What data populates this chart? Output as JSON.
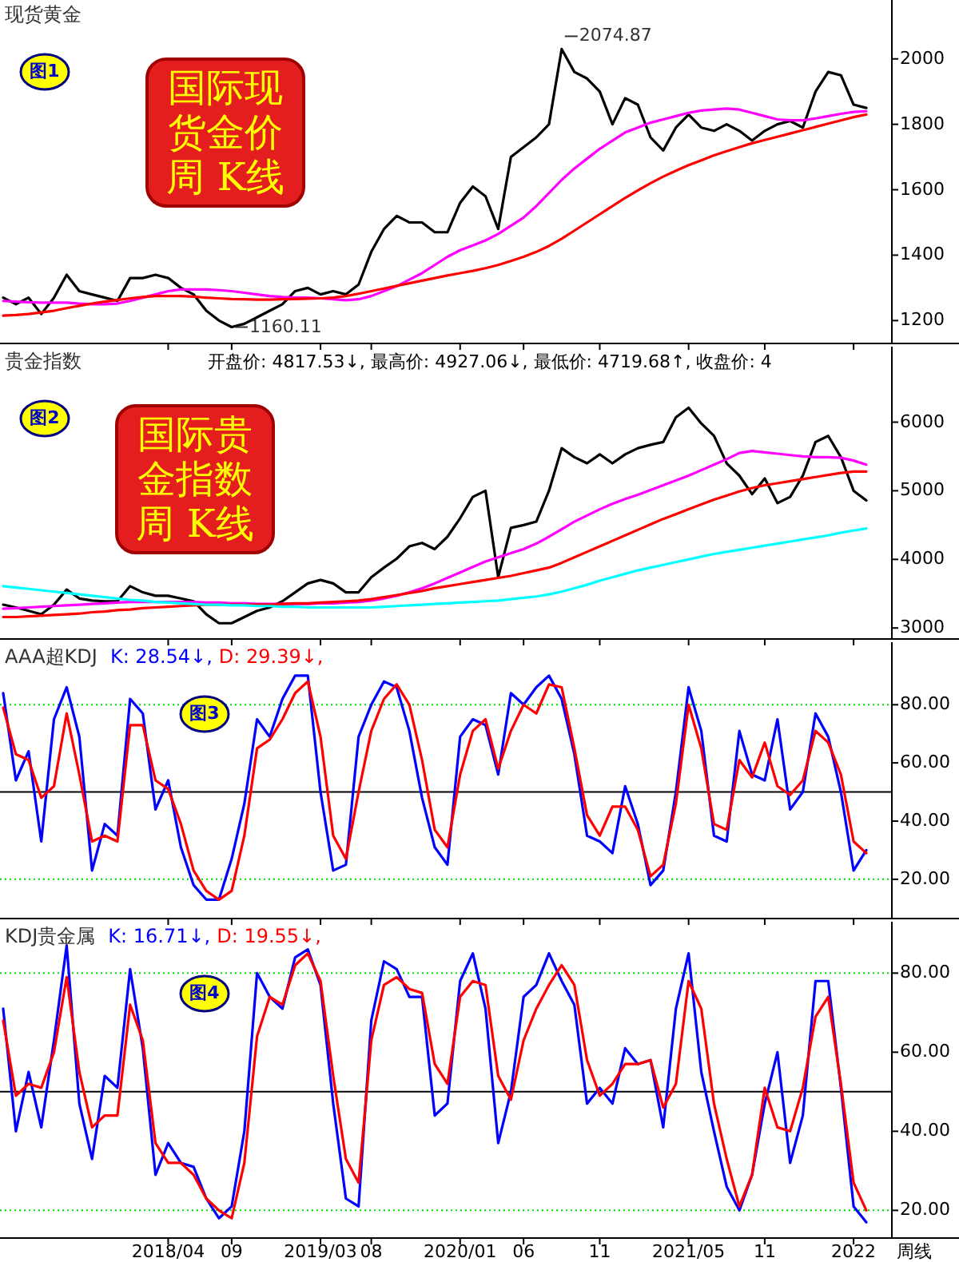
{
  "chart_data": [
    {
      "type": "line",
      "title": "现货黄金",
      "annotations": [
        "图1",
        "国际现货金价周 K线",
        "2074.87",
        "1160.11"
      ],
      "categories": [
        null,
        null,
        null,
        null,
        null,
        null,
        null,
        null,
        null,
        null,
        null,
        null,
        null,
        "2018/04",
        null,
        null,
        null,
        null,
        "09",
        null,
        null,
        null,
        null,
        null,
        null,
        "2019/03",
        null,
        null,
        null,
        "08",
        null,
        null,
        null,
        null,
        null,
        null,
        "2020/01",
        null,
        null,
        null,
        null,
        "06",
        null,
        null,
        null,
        null,
        null,
        "11",
        null,
        null,
        null,
        null,
        null,
        null,
        "2021/05",
        null,
        null,
        null,
        null,
        null,
        "11",
        null,
        null,
        null,
        null,
        null,
        null,
        "2022",
        null
      ],
      "ylim": [
        1130,
        2180
      ],
      "yticks": [
        1200,
        1400,
        1600,
        1800,
        2000
      ],
      "tick_labels": "y",
      "series": [
        {
          "color": "#000000",
          "values": [
            1270,
            1250,
            1270,
            1220,
            1270,
            1340,
            1290,
            1280,
            1270,
            1260,
            1330,
            1330,
            1340,
            1330,
            1300,
            1280,
            1230,
            1200,
            1180,
            1190,
            1210,
            1230,
            1250,
            1290,
            1300,
            1280,
            1290,
            1280,
            1310,
            1410,
            1480,
            1520,
            1500,
            1500,
            1470,
            1470,
            1560,
            1610,
            1580,
            1480,
            1700,
            1730,
            1760,
            1800,
            2030,
            1960,
            1940,
            1900,
            1800,
            1880,
            1860,
            1760,
            1720,
            1790,
            1830,
            1790,
            1780,
            1800,
            1780,
            1750,
            1780,
            1800,
            1810,
            1790,
            1900,
            1960,
            1950,
            1860,
            1850
          ]
        },
        {
          "color": "#ff00ff",
          "values": [
            1260,
            1258,
            1256,
            1255,
            1255,
            1255,
            1252,
            1250,
            1250,
            1252,
            1260,
            1270,
            1280,
            1290,
            1295,
            1295,
            1295,
            1293,
            1290,
            1285,
            1280,
            1275,
            1272,
            1270,
            1270,
            1268,
            1265,
            1262,
            1265,
            1275,
            1290,
            1305,
            1325,
            1345,
            1370,
            1395,
            1415,
            1430,
            1445,
            1465,
            1490,
            1515,
            1550,
            1590,
            1630,
            1665,
            1695,
            1725,
            1750,
            1775,
            1790,
            1805,
            1815,
            1825,
            1835,
            1842,
            1845,
            1848,
            1845,
            1835,
            1825,
            1815,
            1812,
            1812,
            1818,
            1825,
            1832,
            1838,
            1840
          ]
        },
        {
          "color": "#ff0000",
          "values": [
            1215,
            1217,
            1220,
            1225,
            1230,
            1238,
            1245,
            1252,
            1258,
            1263,
            1268,
            1272,
            1275,
            1275,
            1275,
            1273,
            1270,
            1268,
            1266,
            1265,
            1264,
            1264,
            1265,
            1266,
            1267,
            1268,
            1270,
            1275,
            1282,
            1290,
            1298,
            1306,
            1314,
            1322,
            1330,
            1338,
            1345,
            1352,
            1360,
            1370,
            1382,
            1395,
            1410,
            1428,
            1450,
            1475,
            1500,
            1525,
            1550,
            1575,
            1598,
            1620,
            1640,
            1658,
            1675,
            1690,
            1705,
            1718,
            1730,
            1742,
            1752,
            1762,
            1772,
            1782,
            1792,
            1802,
            1812,
            1822,
            1830
          ]
        }
      ]
    },
    {
      "type": "line",
      "title": "贵金指数",
      "subtitle": "开盘价: 4817.53↓, 最高价: 4927.06↓, 最低价: 4719.68↑, 收盘价: 4",
      "annotations": [
        "图2",
        "国际贵金指数周 K线"
      ],
      "categories": [
        null,
        null,
        null,
        null,
        null,
        null,
        null,
        null,
        null,
        null,
        null,
        null,
        null,
        "2018/04",
        null,
        null,
        null,
        null,
        "09",
        null,
        null,
        null,
        null,
        null,
        null,
        "2019/03",
        null,
        null,
        null,
        "08",
        null,
        null,
        null,
        null,
        null,
        null,
        "2020/01",
        null,
        null,
        null,
        null,
        "06",
        null,
        null,
        null,
        null,
        null,
        "11",
        null,
        null,
        null,
        null,
        null,
        null,
        "2021/05",
        null,
        null,
        null,
        null,
        null,
        "11",
        null,
        null,
        null,
        null,
        null,
        null,
        "2022",
        null
      ],
      "ylim": [
        2840,
        7100
      ],
      "yticks": [
        3000,
        4000,
        5000,
        6000
      ],
      "tick_labels": "y",
      "series": [
        {
          "color": "#000000",
          "values": [
            3340,
            3300,
            3250,
            3200,
            3340,
            3560,
            3430,
            3400,
            3390,
            3390,
            3610,
            3520,
            3470,
            3470,
            3430,
            3390,
            3200,
            3070,
            3070,
            3160,
            3250,
            3300,
            3390,
            3520,
            3650,
            3700,
            3650,
            3520,
            3520,
            3740,
            3880,
            4010,
            4190,
            4240,
            4150,
            4330,
            4600,
            4910,
            5000,
            3740,
            4460,
            4500,
            4550,
            5000,
            5620,
            5490,
            5400,
            5530,
            5400,
            5530,
            5620,
            5670,
            5710,
            6070,
            6210,
            5980,
            5800,
            5400,
            5220,
            4950,
            5180,
            4820,
            4910,
            5220,
            5710,
            5800,
            5490,
            5000,
            4860
          ]
        },
        {
          "color": "#ff00ff",
          "values": [
            3280,
            3290,
            3300,
            3310,
            3320,
            3330,
            3340,
            3350,
            3360,
            3370,
            3380,
            3380,
            3380,
            3380,
            3380,
            3380,
            3370,
            3370,
            3360,
            3360,
            3350,
            3350,
            3350,
            3350,
            3350,
            3360,
            3360,
            3370,
            3380,
            3400,
            3430,
            3470,
            3520,
            3580,
            3650,
            3730,
            3810,
            3890,
            3970,
            4030,
            4090,
            4150,
            4230,
            4330,
            4440,
            4550,
            4640,
            4730,
            4810,
            4880,
            4940,
            5010,
            5080,
            5150,
            5220,
            5300,
            5380,
            5460,
            5550,
            5580,
            5560,
            5540,
            5520,
            5500,
            5490,
            5490,
            5480,
            5440,
            5380
          ]
        },
        {
          "color": "#ff0000",
          "values": [
            3160,
            3160,
            3170,
            3180,
            3190,
            3200,
            3210,
            3230,
            3240,
            3260,
            3270,
            3290,
            3300,
            3310,
            3320,
            3330,
            3340,
            3340,
            3340,
            3340,
            3340,
            3340,
            3350,
            3360,
            3360,
            3370,
            3380,
            3390,
            3400,
            3420,
            3450,
            3480,
            3510,
            3540,
            3580,
            3610,
            3640,
            3670,
            3700,
            3730,
            3760,
            3800,
            3840,
            3880,
            3950,
            4030,
            4110,
            4190,
            4270,
            4350,
            4430,
            4510,
            4590,
            4660,
            4730,
            4800,
            4870,
            4930,
            4990,
            5040,
            5080,
            5110,
            5140,
            5170,
            5200,
            5230,
            5260,
            5280,
            5280
          ]
        },
        {
          "color": "#00ffff",
          "values": [
            3610,
            3590,
            3570,
            3550,
            3530,
            3510,
            3490,
            3470,
            3450,
            3430,
            3410,
            3400,
            3380,
            3370,
            3360,
            3350,
            3340,
            3340,
            3330,
            3330,
            3320,
            3320,
            3310,
            3310,
            3300,
            3300,
            3300,
            3300,
            3300,
            3300,
            3310,
            3320,
            3330,
            3340,
            3350,
            3360,
            3370,
            3380,
            3390,
            3400,
            3420,
            3440,
            3460,
            3490,
            3530,
            3580,
            3630,
            3690,
            3740,
            3790,
            3840,
            3880,
            3920,
            3960,
            4000,
            4040,
            4080,
            4110,
            4140,
            4170,
            4200,
            4230,
            4260,
            4290,
            4320,
            4350,
            4390,
            4420,
            4450
          ]
        }
      ]
    },
    {
      "type": "line",
      "title": "AAA超KDJ",
      "annotations": [
        "图3"
      ],
      "legend": "top left",
      "categories": [
        null,
        null,
        null,
        null,
        null,
        null,
        null,
        null,
        null,
        null,
        null,
        null,
        null,
        "2018/04",
        null,
        null,
        null,
        null,
        "09",
        null,
        null,
        null,
        null,
        null,
        null,
        "2019/03",
        null,
        null,
        null,
        "08",
        null,
        null,
        null,
        null,
        null,
        null,
        "2020/01",
        null,
        null,
        null,
        null,
        "06",
        null,
        null,
        null,
        null,
        null,
        "11",
        null,
        null,
        null,
        null,
        null,
        null,
        "2021/05",
        null,
        null,
        null,
        null,
        null,
        "11",
        null,
        null,
        null,
        null,
        null,
        null,
        "2022",
        null
      ],
      "ylim": [
        6.5,
        101.5
      ],
      "yticks": [
        {
          "value": 20,
          "label": "20.00"
        },
        {
          "value": 40,
          "label": "40.00"
        },
        {
          "value": 60,
          "label": "60.00"
        },
        {
          "value": 80,
          "label": "80.00"
        }
      ],
      "tick_labels": "y",
      "ref_lines": [
        {
          "axis": "y",
          "value": 80,
          "color": "#00dd00",
          "line_style": "dotted"
        },
        {
          "axis": "y",
          "value": 50,
          "color": "#000000"
        },
        {
          "axis": "y",
          "value": 20,
          "color": "#00dd00",
          "line_style": "dotted"
        }
      ],
      "series": [
        {
          "name": "K: 28.54↓,",
          "color": "#0000ff",
          "values": [
            84,
            54,
            64,
            33,
            75,
            86,
            69,
            23,
            39,
            35,
            82,
            77,
            44,
            54,
            31,
            18,
            13,
            13,
            27,
            46,
            75,
            69,
            82,
            90,
            90,
            50,
            23,
            25,
            69,
            80,
            88,
            86,
            71,
            48,
            31,
            25,
            69,
            75,
            73,
            56,
            84,
            80,
            86,
            90,
            82,
            63,
            35,
            33,
            29,
            52,
            39,
            18,
            23,
            50,
            86,
            71,
            35,
            33,
            71,
            56,
            54,
            75,
            44,
            50,
            77,
            69,
            50,
            23,
            30
          ]
        },
        {
          "name": "D: 29.39↓,",
          "color": "#ff0000",
          "values": [
            79,
            63,
            61,
            48,
            52,
            77,
            56,
            33,
            35,
            33,
            73,
            73,
            54,
            51,
            39,
            23,
            16,
            13,
            16,
            35,
            65,
            68,
            75,
            84,
            88,
            69,
            35,
            27,
            50,
            71,
            82,
            87,
            80,
            61,
            37,
            31,
            56,
            71,
            75,
            58,
            71,
            80,
            77,
            87,
            86,
            65,
            42,
            35,
            45,
            45,
            37,
            21,
            25,
            46,
            80,
            65,
            39,
            37,
            61,
            55,
            67,
            52,
            49,
            54,
            71,
            67,
            56,
            33,
            29
          ]
        }
      ]
    },
    {
      "type": "line",
      "title": "KDJ贵金属",
      "annotations": [
        "图4"
      ],
      "legend": "top left",
      "xlabel": "周线",
      "categories": [
        null,
        null,
        null,
        null,
        null,
        null,
        null,
        null,
        null,
        null,
        null,
        null,
        null,
        "2018/04",
        null,
        null,
        null,
        null,
        "09",
        null,
        null,
        null,
        null,
        null,
        null,
        "2019/03",
        null,
        null,
        null,
        "08",
        null,
        null,
        null,
        null,
        null,
        null,
        "2020/01",
        null,
        null,
        null,
        null,
        "06",
        null,
        null,
        null,
        null,
        null,
        "11",
        null,
        null,
        null,
        null,
        null,
        null,
        "2021/05",
        null,
        null,
        null,
        null,
        null,
        "11",
        null,
        null,
        null,
        null,
        null,
        null,
        "2022",
        null
      ],
      "ylim": [
        13,
        93
      ],
      "yticks": [
        {
          "value": 20,
          "label": "20.00"
        },
        {
          "value": 40,
          "label": "40.00"
        },
        {
          "value": 60,
          "label": "60.00"
        },
        {
          "value": 80,
          "label": "80.00"
        }
      ],
      "ref_lines": [
        {
          "axis": "y",
          "value": 80,
          "color": "#00dd00",
          "line_style": "dotted"
        },
        {
          "axis": "y",
          "value": 50,
          "color": "#000000"
        },
        {
          "axis": "y",
          "value": 20,
          "color": "#00dd00",
          "line_style": "dotted"
        }
      ],
      "series": [
        {
          "name": "K: 16.71↓,",
          "color": "#0000ff",
          "values": [
            71,
            40,
            55,
            41,
            63,
            87,
            47,
            33,
            54,
            51,
            81,
            61,
            29,
            37,
            32,
            31,
            23,
            18,
            21,
            40,
            80,
            74,
            71,
            84,
            86,
            77,
            47,
            23,
            21,
            68,
            83,
            81,
            74,
            74,
            44,
            47,
            78,
            85,
            71,
            37,
            50,
            74,
            77,
            85,
            78,
            72,
            47,
            51,
            47,
            61,
            57,
            58,
            41,
            71,
            85,
            55,
            40,
            26,
            20,
            29,
            47,
            60,
            32,
            44,
            78,
            78,
            51,
            21,
            17
          ]
        },
        {
          "name": "D: 19.55↓,",
          "color": "#ff0000",
          "values": [
            68,
            49,
            52,
            51,
            60,
            79,
            55,
            41,
            44,
            44,
            72,
            63,
            37,
            32,
            32,
            29,
            23,
            20,
            18,
            32,
            64,
            74,
            72,
            82,
            85,
            78,
            54,
            33,
            27,
            63,
            77,
            79,
            76,
            75,
            57,
            52,
            74,
            78,
            77,
            54,
            48,
            63,
            71,
            77,
            82,
            77,
            58,
            49,
            52,
            57,
            57,
            58,
            46,
            52,
            78,
            71,
            47,
            33,
            21,
            29,
            51,
            41,
            40,
            51,
            69,
            74,
            52,
            27,
            20
          ]
        }
      ]
    }
  ]
}
